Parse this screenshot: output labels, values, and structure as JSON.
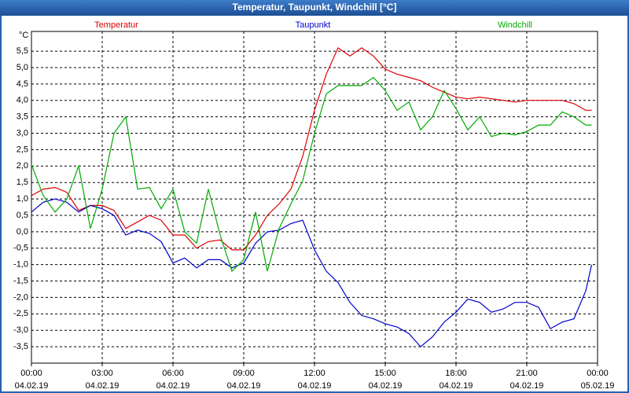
{
  "chart_data": {
    "type": "line",
    "title": "Temperatur, Taupunkt, Windchill [°C]",
    "y_unit": "°C",
    "x": [
      0,
      0.5,
      1,
      1.5,
      2,
      2.5,
      3,
      3.5,
      4,
      4.5,
      5,
      5.5,
      6,
      6.5,
      7,
      7.5,
      8,
      8.5,
      9,
      9.5,
      10,
      10.5,
      11,
      11.5,
      12,
      12.5,
      13,
      13.5,
      14,
      14.5,
      15,
      15.5,
      16,
      16.5,
      17,
      17.5,
      18,
      18.5,
      19,
      19.5,
      20,
      20.5,
      21,
      21.5,
      22,
      22.5,
      23,
      23.5,
      23.75
    ],
    "series": [
      {
        "name": "Temperatur",
        "color": "#dd0000",
        "values": [
          1.1,
          1.3,
          1.35,
          1.2,
          0.65,
          0.8,
          0.8,
          0.65,
          0.1,
          0.3,
          0.5,
          0.35,
          -0.1,
          -0.1,
          -0.5,
          -0.3,
          -0.25,
          -0.55,
          -0.55,
          -0.1,
          0.5,
          0.85,
          1.3,
          2.3,
          3.7,
          4.8,
          5.6,
          5.35,
          5.6,
          5.35,
          4.95,
          4.8,
          4.7,
          4.6,
          4.4,
          4.25,
          4.1,
          4.05,
          4.1,
          4.05,
          4.0,
          3.95,
          4.0,
          4.0,
          4.0,
          4.0,
          3.9,
          3.7,
          3.7
        ]
      },
      {
        "name": "Taupunkt",
        "color": "#0000cc",
        "values": [
          0.6,
          0.9,
          1.0,
          0.9,
          0.6,
          0.8,
          0.7,
          0.5,
          -0.1,
          0.05,
          -0.05,
          -0.3,
          -0.95,
          -0.8,
          -1.1,
          -0.85,
          -0.85,
          -1.1,
          -0.95,
          -0.35,
          0.0,
          0.05,
          0.25,
          0.35,
          -0.55,
          -1.2,
          -1.55,
          -2.15,
          -2.55,
          -2.65,
          -2.8,
          -2.9,
          -3.1,
          -3.5,
          -3.2,
          -2.75,
          -2.45,
          -2.05,
          -2.15,
          -2.45,
          -2.35,
          -2.15,
          -2.15,
          -2.3,
          -2.95,
          -2.75,
          -2.65,
          -1.8,
          -1.0
        ]
      },
      {
        "name": "Windchill",
        "color": "#00aa00",
        "values": [
          2.05,
          1.1,
          0.6,
          1.0,
          2.0,
          0.1,
          1.3,
          3.0,
          3.5,
          1.3,
          1.35,
          0.7,
          1.3,
          0.0,
          -0.35,
          1.3,
          -0.1,
          -1.2,
          -0.85,
          0.6,
          -1.2,
          0.1,
          0.85,
          1.55,
          3.0,
          4.2,
          4.45,
          4.45,
          4.45,
          4.7,
          4.3,
          3.7,
          3.95,
          3.1,
          3.5,
          4.3,
          3.75,
          3.1,
          3.5,
          2.9,
          3.0,
          2.95,
          3.05,
          3.25,
          3.25,
          3.65,
          3.5,
          3.25,
          3.25
        ]
      }
    ],
    "xlim": [
      0,
      24
    ],
    "xticks": [
      {
        "value": 0,
        "label": "00:00"
      },
      {
        "value": 3,
        "label": "03:00"
      },
      {
        "value": 6,
        "label": "06:00"
      },
      {
        "value": 9,
        "label": "09:00"
      },
      {
        "value": 12,
        "label": "12:00"
      },
      {
        "value": 15,
        "label": "15:00"
      },
      {
        "value": 18,
        "label": "18:00"
      },
      {
        "value": 21,
        "label": "21:00"
      },
      {
        "value": 24,
        "label": "00:00"
      }
    ],
    "xtick_dates": [
      "04.02.19",
      "04.02.19",
      "04.02.19",
      "04.02.19",
      "04.02.19",
      "04.02.19",
      "04.02.19",
      "04.02.19",
      "05.02.19"
    ],
    "ylim": [
      -4,
      6.1
    ],
    "yticks": [
      {
        "value": -3.5,
        "label": "-3,5"
      },
      {
        "value": -3,
        "label": "-3,0"
      },
      {
        "value": -2.5,
        "label": "-2,5"
      },
      {
        "value": -2,
        "label": "-2,0"
      },
      {
        "value": -1.5,
        "label": "-1,5"
      },
      {
        "value": -1,
        "label": "-1,0"
      },
      {
        "value": -0.5,
        "label": "-0,5"
      },
      {
        "value": 0,
        "label": "0,0"
      },
      {
        "value": 0.5,
        "label": "0,5"
      },
      {
        "value": 1,
        "label": "1,0"
      },
      {
        "value": 1.5,
        "label": "1,5"
      },
      {
        "value": 2,
        "label": "2,0"
      },
      {
        "value": 2.5,
        "label": "2,5"
      },
      {
        "value": 3,
        "label": "3,0"
      },
      {
        "value": 3.5,
        "label": "3,5"
      },
      {
        "value": 4,
        "label": "4,0"
      },
      {
        "value": 4.5,
        "label": "4,5"
      },
      {
        "value": 5,
        "label": "5,0"
      },
      {
        "value": 5.5,
        "label": "5,5"
      }
    ],
    "grid": true
  }
}
